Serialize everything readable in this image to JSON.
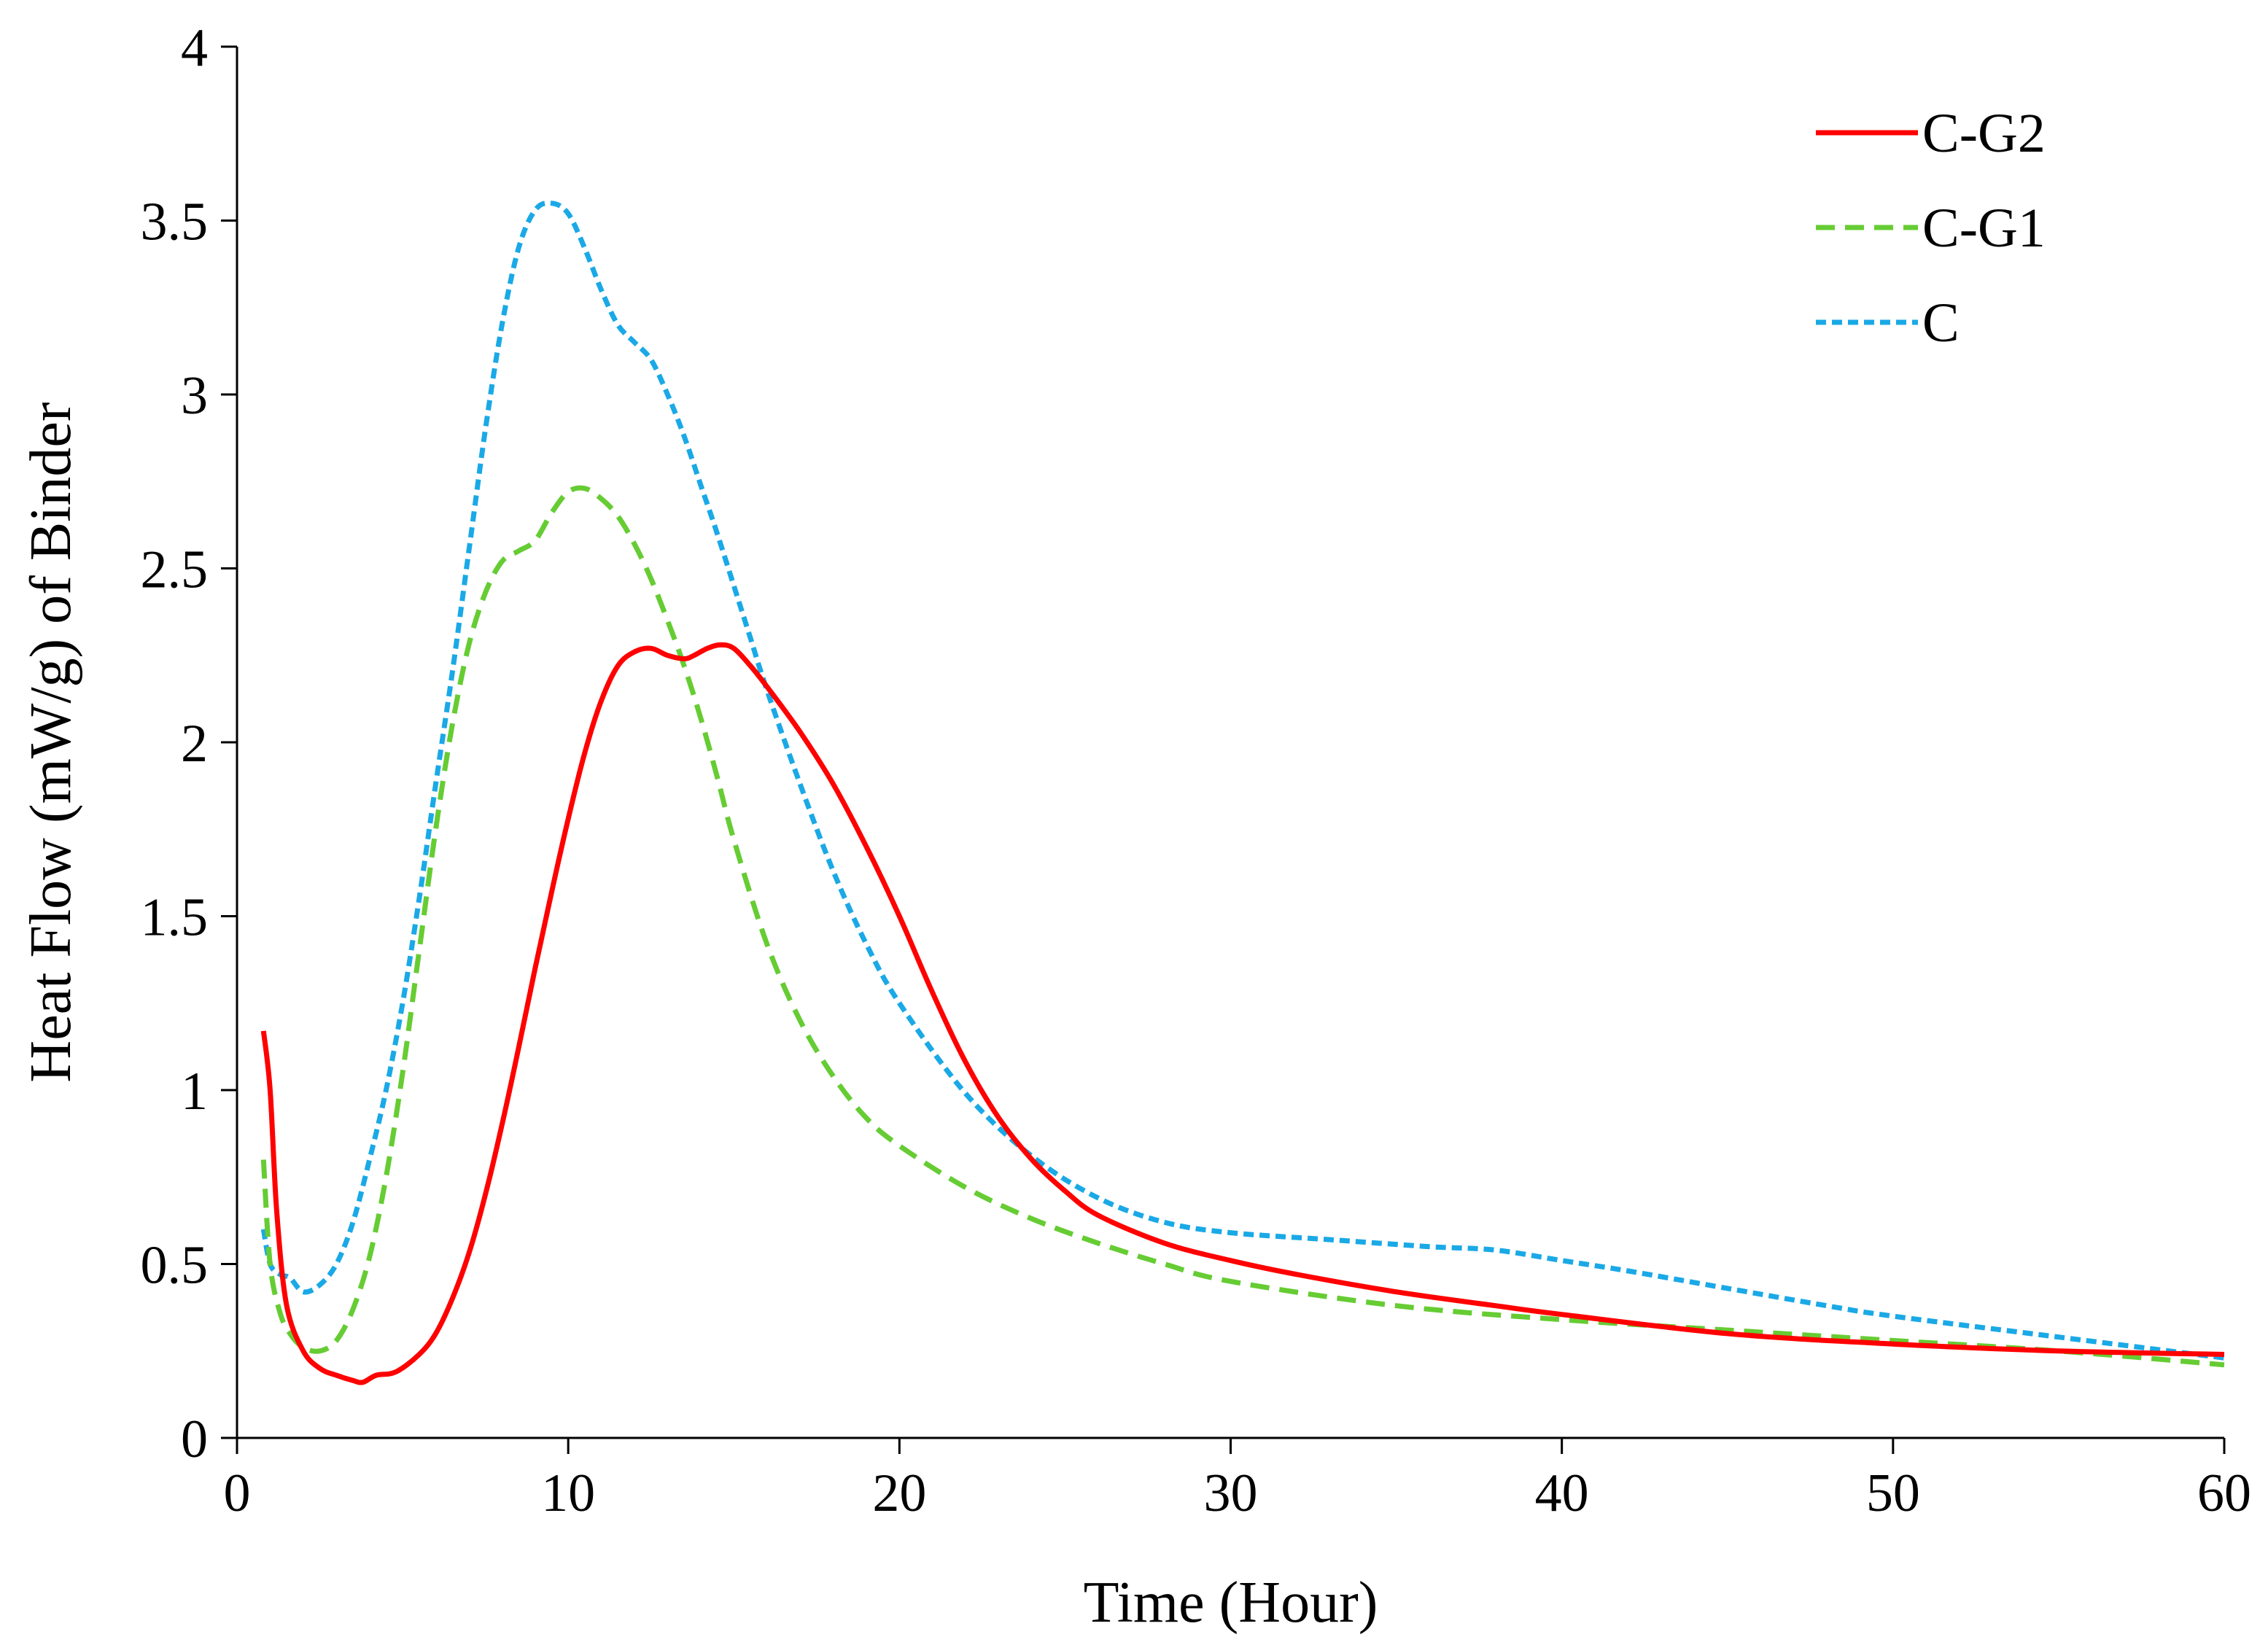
{
  "chart_data": {
    "type": "line",
    "title": "",
    "xlabel": "Time (Hour)",
    "ylabel": "Heat Flow (mW/g) of Binder",
    "xlim": [
      0,
      60
    ],
    "ylim": [
      0,
      4
    ],
    "xticks": [
      0,
      10,
      20,
      30,
      40,
      50,
      60
    ],
    "xtick_labels": [
      "0",
      "10",
      "20",
      "30",
      "40",
      "50",
      "60"
    ],
    "yticks": [
      0,
      0.5,
      1,
      1.5,
      2,
      2.5,
      3,
      3.5,
      4
    ],
    "ytick_labels": [
      "0",
      "0.5",
      "1",
      "1.5",
      "2",
      "2.5",
      "3",
      "3.5",
      "4"
    ],
    "grid": false,
    "legend_position": "top-right",
    "series": [
      {
        "name": "C-G2",
        "color": "#ff0000",
        "style": "solid",
        "x": [
          0.8,
          1.0,
          1.2,
          1.5,
          2.0,
          2.5,
          3.0,
          3.5,
          3.8,
          4.2,
          4.8,
          5.5,
          6.0,
          6.5,
          7.0,
          7.5,
          8.0,
          8.5,
          9.0,
          9.5,
          10.0,
          10.5,
          11.0,
          11.5,
          12.0,
          12.5,
          13.0,
          13.5,
          13.8,
          14.2,
          14.6,
          15.0,
          15.5,
          16.0,
          17.0,
          18.0,
          19.0,
          20.0,
          21.0,
          22.0,
          23.0,
          24.0,
          25.0,
          26.0,
          28.0,
          30.0,
          32.0,
          35.0,
          38.0,
          40.0,
          45.0,
          50.0,
          55.0,
          60.0
        ],
        "y": [
          1.17,
          1.0,
          0.65,
          0.38,
          0.25,
          0.2,
          0.18,
          0.165,
          0.16,
          0.18,
          0.19,
          0.24,
          0.3,
          0.4,
          0.53,
          0.7,
          0.9,
          1.12,
          1.35,
          1.57,
          1.78,
          1.97,
          2.12,
          2.22,
          2.26,
          2.27,
          2.25,
          2.24,
          2.25,
          2.27,
          2.28,
          2.27,
          2.22,
          2.16,
          2.03,
          1.88,
          1.7,
          1.5,
          1.28,
          1.08,
          0.92,
          0.8,
          0.71,
          0.64,
          0.56,
          0.51,
          0.47,
          0.42,
          0.38,
          0.355,
          0.3,
          0.27,
          0.25,
          0.24
        ]
      },
      {
        "name": "C-G1",
        "color": "#66cc33",
        "style": "dashed",
        "x": [
          0.8,
          1.0,
          1.3,
          1.6,
          2.0,
          2.5,
          3.0,
          3.5,
          4.0,
          4.5,
          5.0,
          5.5,
          6.0,
          6.5,
          7.0,
          7.5,
          8.0,
          8.5,
          9.0,
          9.5,
          10.0,
          10.5,
          11.0,
          11.5,
          12.0,
          12.5,
          13.0,
          13.5,
          14.0,
          14.5,
          15.0,
          16.0,
          17.0,
          18.0,
          19.0,
          20.0,
          22.0,
          24.0,
          26.0,
          28.0,
          30.0,
          35.0,
          40.0,
          45.0,
          50.0,
          55.0,
          60.0
        ],
        "y": [
          0.8,
          0.5,
          0.36,
          0.3,
          0.26,
          0.25,
          0.28,
          0.37,
          0.52,
          0.75,
          1.05,
          1.4,
          1.75,
          2.05,
          2.28,
          2.43,
          2.52,
          2.55,
          2.58,
          2.66,
          2.72,
          2.73,
          2.7,
          2.65,
          2.57,
          2.47,
          2.35,
          2.22,
          2.07,
          1.9,
          1.72,
          1.42,
          1.2,
          1.04,
          0.92,
          0.84,
          0.72,
          0.63,
          0.56,
          0.5,
          0.45,
          0.38,
          0.34,
          0.31,
          0.28,
          0.25,
          0.21
        ]
      },
      {
        "name": "C",
        "color": "#1aa9e6",
        "style": "dotted",
        "x": [
          0.8,
          1.0,
          1.3,
          1.6,
          2.0,
          2.5,
          3.0,
          3.5,
          4.0,
          4.5,
          5.0,
          5.5,
          6.0,
          6.5,
          7.0,
          7.5,
          8.0,
          8.5,
          9.0,
          9.5,
          10.0,
          10.5,
          11.0,
          11.5,
          12.0,
          12.5,
          13.0,
          13.5,
          14.0,
          14.5,
          15.0,
          15.5,
          16.0,
          17.0,
          18.0,
          19.0,
          20.0,
          22.0,
          24.0,
          26.0,
          28.0,
          30.0,
          33.0,
          36.0,
          38.0,
          40.0,
          42.0,
          45.0,
          48.0,
          50.0,
          55.0,
          60.0
        ],
        "y": [
          0.6,
          0.5,
          0.47,
          0.46,
          0.42,
          0.44,
          0.5,
          0.62,
          0.8,
          1.0,
          1.25,
          1.55,
          1.88,
          2.2,
          2.55,
          2.9,
          3.2,
          3.42,
          3.53,
          3.55,
          3.52,
          3.42,
          3.3,
          3.2,
          3.15,
          3.1,
          3.0,
          2.88,
          2.74,
          2.6,
          2.45,
          2.3,
          2.15,
          1.88,
          1.63,
          1.42,
          1.25,
          0.99,
          0.81,
          0.69,
          0.62,
          0.59,
          0.57,
          0.55,
          0.54,
          0.51,
          0.48,
          0.43,
          0.38,
          0.35,
          0.29,
          0.23
        ]
      }
    ]
  }
}
